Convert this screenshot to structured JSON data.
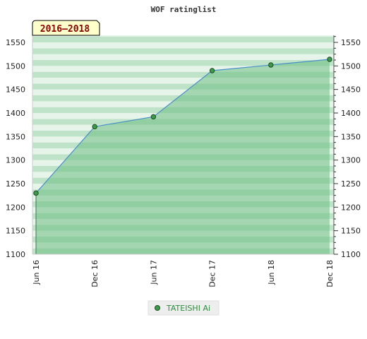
{
  "chart_data": {
    "type": "area",
    "title": "WOF ratinglist",
    "badge": "2016–2018",
    "categories": [
      "Jun 16",
      "Dec 16",
      "Jun 17",
      "Dec 17",
      "Jun 18",
      "Dec 18"
    ],
    "series": [
      {
        "name": "TATEISHI Ai",
        "x": [
          0,
          1,
          2,
          3,
          4,
          5
        ],
        "values": [
          1230,
          1371,
          1392,
          1490,
          1502,
          1514
        ]
      }
    ],
    "y_ticks": [
      "1100",
      "1150",
      "1200",
      "1250",
      "1300",
      "1350",
      "1400",
      "1450",
      "1500",
      "1550"
    ],
    "ylim": [
      1100,
      1565
    ],
    "grid": "horizontal bands",
    "legend": "bottom-center",
    "colors": {
      "area": "#6cbd82",
      "line": "#4a90c8",
      "marker": "#3c9a4c",
      "band_dark": "#bfe3c8",
      "band_light": "#e6f4ea",
      "badge_fill": "#ffffcc",
      "legend_bg": "#eeeeee"
    }
  }
}
